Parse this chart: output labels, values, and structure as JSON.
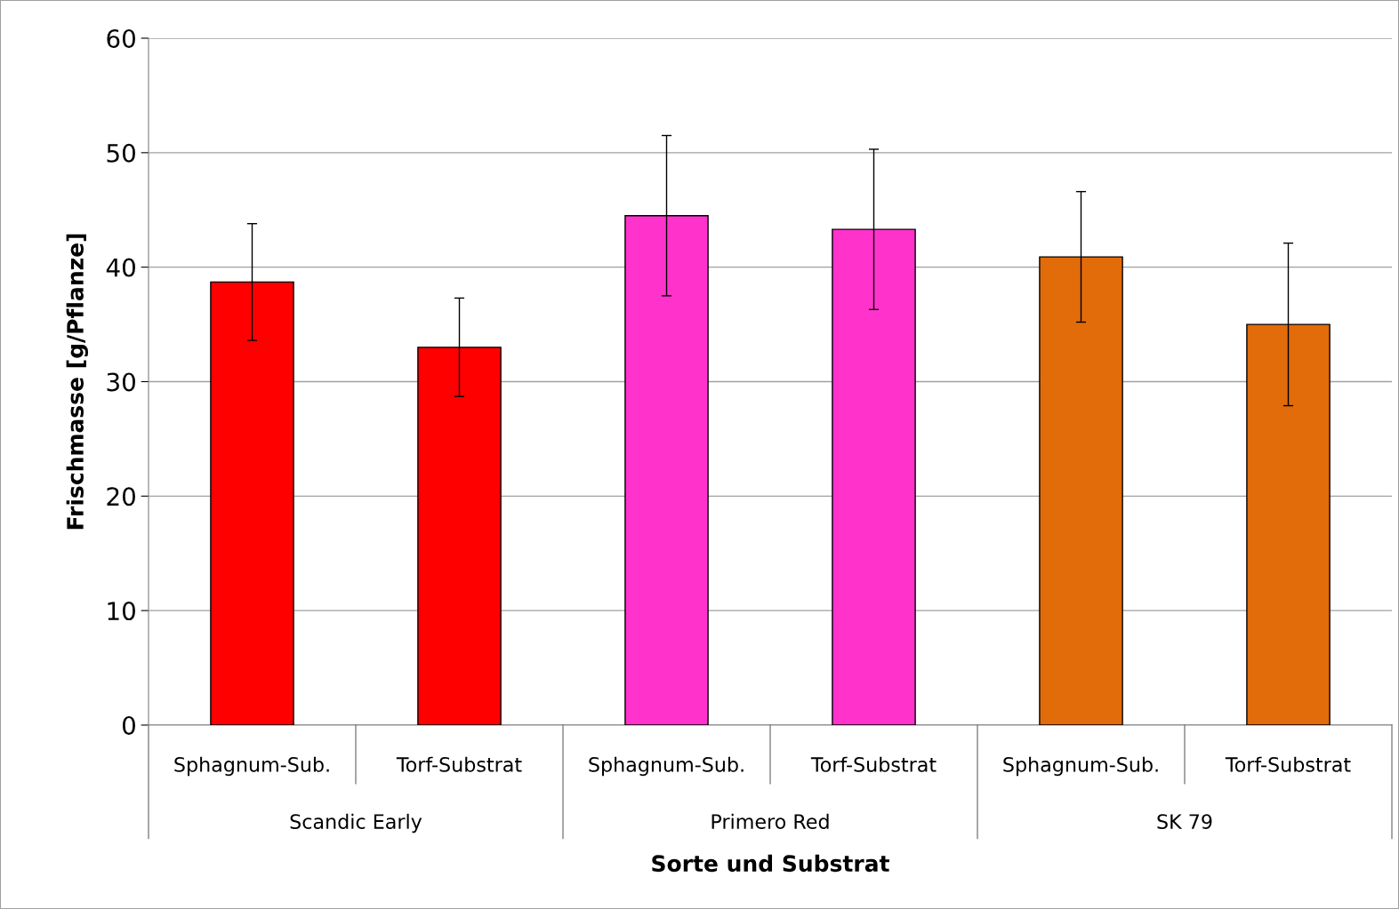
{
  "chart_data": {
    "type": "bar",
    "xlabel": "Sorte und Substrat",
    "ylabel": "Frischmasse [g/Pflanze]",
    "categories": [
      "Sphagnum-Sub.",
      "Torf-Substrat",
      "Sphagnum-Sub.",
      "Torf-Substrat",
      "Sphagnum-Sub.",
      "Torf-Substrat"
    ],
    "values": [
      38.7,
      33.0,
      44.5,
      43.3,
      40.9,
      35.0
    ],
    "errors": [
      5.1,
      4.3,
      7.0,
      7.0,
      5.7,
      7.1
    ],
    "colors": [
      "#ff0000",
      "#ff0000",
      "#ff33cc",
      "#ff33cc",
      "#e26b0a",
      "#e26b0a"
    ],
    "annotations": [
      "Scandic Early",
      "Primero Red",
      "SK 79"
    ],
    "ylim": [
      0,
      60
    ],
    "yticks": [
      0,
      10,
      20,
      30,
      40,
      50,
      60
    ],
    "grid": "y"
  }
}
